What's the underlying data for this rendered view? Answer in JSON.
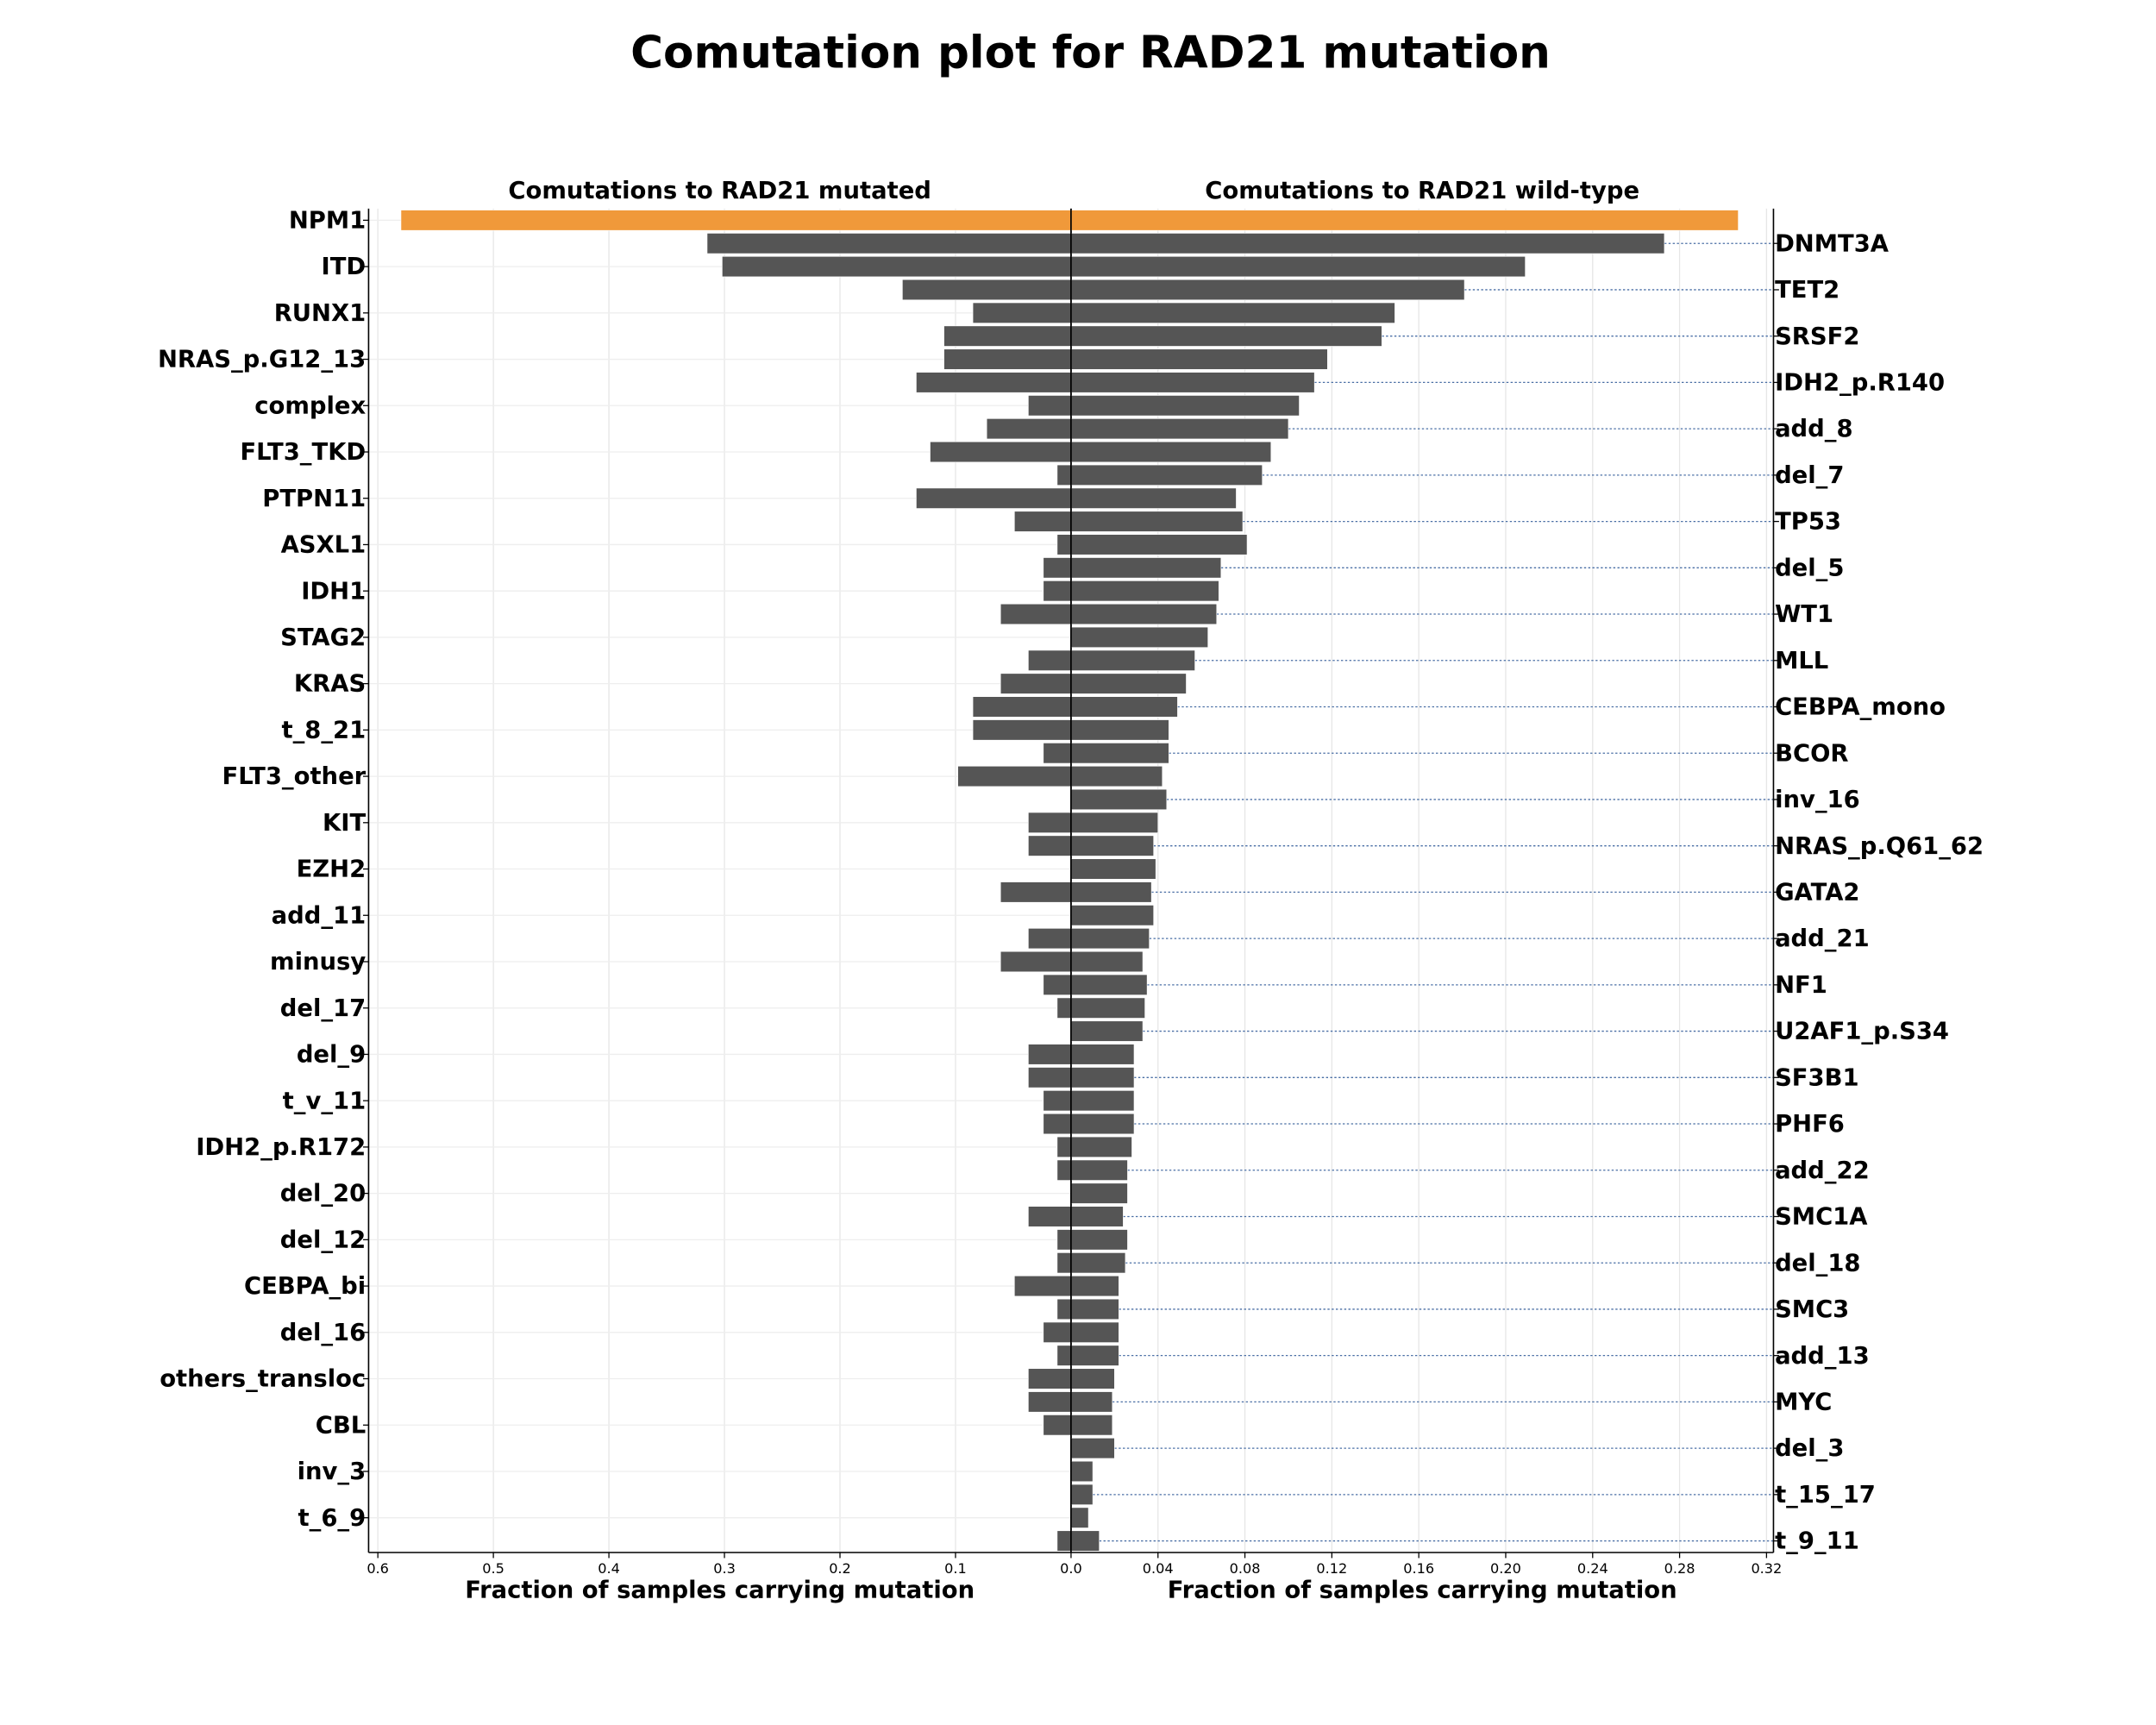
{
  "title": "Comutation plot for RAD21 mutation",
  "chart_data": [
    {
      "type": "barh",
      "subtitle": "Comutations to RAD21 mutated",
      "xlabel": "Fraction of samples carrying mutation",
      "side": "left",
      "xinvert": true,
      "grid": true,
      "xlim": [
        0,
        0.608
      ],
      "xticks": [
        {
          "value": 0,
          "label": "0.0"
        },
        0.1,
        0.2,
        0.3,
        0.4,
        0.5,
        0.6
      ],
      "categories": [
        "NPM1",
        null,
        "ITD",
        null,
        "RUNX1",
        null,
        "NRAS_p.G12_13",
        null,
        "complex",
        null,
        "FLT3_TKD",
        null,
        "PTPN11",
        null,
        "ASXL1",
        null,
        "IDH1",
        null,
        "STAG2",
        null,
        "KRAS",
        null,
        "t_8_21",
        null,
        "FLT3_other",
        null,
        "KIT",
        null,
        "EZH2",
        null,
        "add_11",
        null,
        "minusy",
        null,
        "del_17",
        null,
        "del_9",
        null,
        "t_v_11",
        null,
        "IDH2_p.R172",
        null,
        "del_20",
        null,
        "del_12",
        null,
        "CEBPA_bi",
        null,
        "del_16",
        null,
        "others_transloc",
        null,
        "CBL",
        null,
        "inv_3",
        null,
        "t_6_9",
        null
      ],
      "values": [
        0.58,
        0.315,
        0.302,
        0.146,
        0.085,
        0.11,
        0.11,
        0.134,
        0.037,
        0.073,
        0.122,
        0.012,
        0.134,
        0.049,
        0.012,
        0.024,
        0.024,
        0.061,
        0,
        0.037,
        0.061,
        0.085,
        0.085,
        0.024,
        0.098,
        0,
        0.037,
        0.037,
        0,
        0.061,
        0,
        0.037,
        0.061,
        0.024,
        0.012,
        0,
        0.037,
        0.037,
        0.024,
        0.024,
        0.012,
        0.012,
        0,
        0.037,
        0.012,
        0.012,
        0.049,
        0.012,
        0.024,
        0.012,
        0.037,
        0.037,
        0.024,
        0,
        0,
        0,
        0,
        0.012
      ],
      "colors": [
        "#f0993a",
        "#555555",
        "#555555",
        "#555555",
        "#555555",
        "#555555",
        "#555555",
        "#555555",
        "#555555",
        "#555555",
        "#555555",
        "#555555",
        "#555555",
        "#555555",
        "#555555",
        "#555555",
        "#555555",
        "#555555",
        "#555555",
        "#555555",
        "#555555",
        "#555555",
        "#555555",
        "#555555",
        "#555555",
        "#555555",
        "#555555",
        "#555555",
        "#555555",
        "#555555",
        "#555555",
        "#555555",
        "#555555",
        "#555555",
        "#555555",
        "#555555",
        "#555555",
        "#555555",
        "#555555",
        "#555555",
        "#555555",
        "#555555",
        "#555555",
        "#555555",
        "#555555",
        "#555555",
        "#555555",
        "#555555",
        "#555555",
        "#555555",
        "#555555",
        "#555555",
        "#555555",
        "#555555",
        "#555555",
        "#555555",
        "#555555",
        "#555555"
      ]
    },
    {
      "type": "barh",
      "subtitle": "Comutations to RAD21 wild-type",
      "xlabel": "Fraction of samples carrying mutation",
      "side": "right",
      "xinvert": false,
      "grid": true,
      "xlim": [
        0,
        0.3232
      ],
      "xticks": [
        0.04,
        0.08,
        0.12,
        0.16,
        {
          "value": 0.2,
          "label": "0.20"
        },
        0.24,
        0.28,
        0.32
      ],
      "categories": [
        null,
        "DNMT3A",
        null,
        "TET2",
        null,
        "SRSF2",
        null,
        "IDH2_p.R140",
        null,
        "add_8",
        null,
        "del_7",
        null,
        "TP53",
        null,
        "del_5",
        null,
        "WT1",
        null,
        "MLL",
        null,
        "CEBPA_mono",
        null,
        "BCOR",
        null,
        "inv_16",
        null,
        "NRAS_p.Q61_62",
        null,
        "GATA2",
        null,
        "add_21",
        null,
        "NF1",
        null,
        "U2AF1_p.S34",
        null,
        "SF3B1",
        null,
        "PHF6",
        null,
        "add_22",
        null,
        "SMC1A",
        null,
        "del_18",
        null,
        "SMC3",
        null,
        "add_13",
        null,
        "MYC",
        null,
        "del_3",
        null,
        "t_15_17",
        null,
        "t_9_11"
      ],
      "values": [
        0.307,
        0.273,
        0.209,
        0.181,
        0.149,
        0.143,
        0.118,
        0.112,
        0.105,
        0.1,
        0.092,
        0.088,
        0.076,
        0.079,
        0.081,
        0.069,
        0.068,
        0.067,
        0.063,
        0.057,
        0.053,
        0.049,
        0.045,
        0.045,
        0.042,
        0.044,
        0.04,
        0.038,
        0.039,
        0.037,
        0.038,
        0.036,
        0.033,
        0.035,
        0.034,
        0.033,
        0.029,
        0.029,
        0.029,
        0.029,
        0.028,
        0.026,
        0.026,
        0.024,
        0.026,
        0.025,
        0.022,
        0.022,
        0.022,
        0.022,
        0.02,
        0.019,
        0.019,
        0.02,
        0.01,
        0.01,
        0.008,
        0.013
      ],
      "colors": [
        "#f0993a",
        "#555555",
        "#555555",
        "#555555",
        "#555555",
        "#555555",
        "#555555",
        "#555555",
        "#555555",
        "#555555",
        "#555555",
        "#555555",
        "#555555",
        "#555555",
        "#555555",
        "#555555",
        "#555555",
        "#555555",
        "#555555",
        "#555555",
        "#555555",
        "#555555",
        "#555555",
        "#555555",
        "#555555",
        "#555555",
        "#555555",
        "#555555",
        "#555555",
        "#555555",
        "#555555",
        "#555555",
        "#555555",
        "#555555",
        "#555555",
        "#555555",
        "#555555",
        "#555555",
        "#555555",
        "#555555",
        "#555555",
        "#555555",
        "#555555",
        "#555555",
        "#555555",
        "#555555",
        "#555555",
        "#555555",
        "#555555",
        "#555555",
        "#555555",
        "#555555",
        "#555555",
        "#555555",
        "#555555",
        "#555555",
        "#555555",
        "#555555"
      ]
    }
  ]
}
